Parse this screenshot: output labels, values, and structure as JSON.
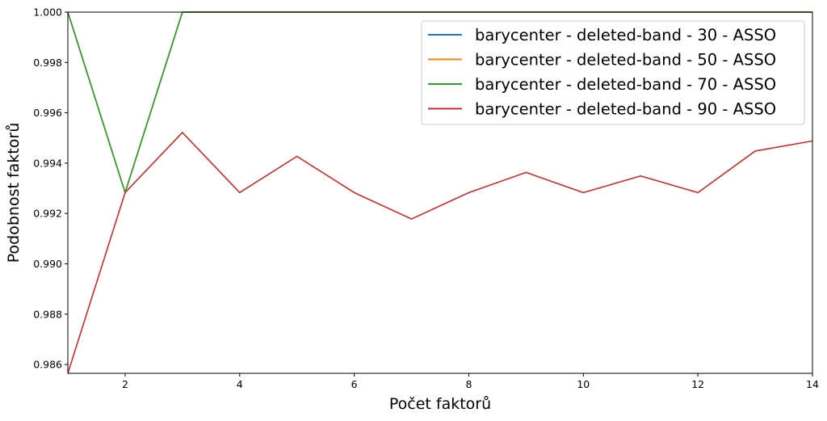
{
  "chart_data": {
    "type": "line",
    "title": "",
    "xlabel": "Počet faktorů",
    "ylabel": "Podobnost faktorů",
    "xlim": [
      1,
      14
    ],
    "ylim": [
      0.98565,
      1.0
    ],
    "xticks": [
      2,
      4,
      6,
      8,
      10,
      12,
      14
    ],
    "yticks": [
      0.986,
      0.988,
      0.99,
      0.992,
      0.994,
      0.996,
      0.998,
      1.0
    ],
    "ytick_labels": [
      "0.986",
      "0.988",
      "0.990",
      "0.992",
      "0.994",
      "0.996",
      "0.998",
      "1.000"
    ],
    "grid": false,
    "legend_position": "top-right",
    "x": [
      1,
      2,
      3,
      4,
      5,
      6,
      7,
      8,
      9,
      10,
      11,
      12,
      13,
      14
    ],
    "series": [
      {
        "name": "barycenter - deleted-band - 30 - ASSO",
        "color": "#1f77b4",
        "values": [
          1.0,
          0.99283,
          1.0,
          1.0,
          1.0,
          1.0,
          1.0,
          1.0,
          1.0,
          1.0,
          1.0,
          1.0,
          1.0,
          1.0
        ]
      },
      {
        "name": "barycenter - deleted-band - 50 - ASSO",
        "color": "#ff7f0e",
        "values": [
          1.0,
          0.99283,
          1.0,
          1.0,
          1.0,
          1.0,
          1.0,
          1.0,
          1.0,
          1.0,
          1.0,
          1.0,
          1.0,
          1.0
        ]
      },
      {
        "name": "barycenter - deleted-band - 70 - ASSO",
        "color": "#2ca02c",
        "values": [
          1.0,
          0.99283,
          1.0,
          1.0,
          1.0,
          1.0,
          1.0,
          1.0,
          1.0,
          1.0,
          1.0,
          1.0,
          1.0,
          1.0
        ]
      },
      {
        "name": "barycenter - deleted-band - 90 - ASSO",
        "color": "#d62728",
        "values": [
          0.98565,
          0.99283,
          0.99522,
          0.99283,
          0.99427,
          0.99283,
          0.99178,
          0.99283,
          0.99363,
          0.99283,
          0.99349,
          0.99283,
          0.99448,
          0.99488
        ]
      }
    ]
  }
}
